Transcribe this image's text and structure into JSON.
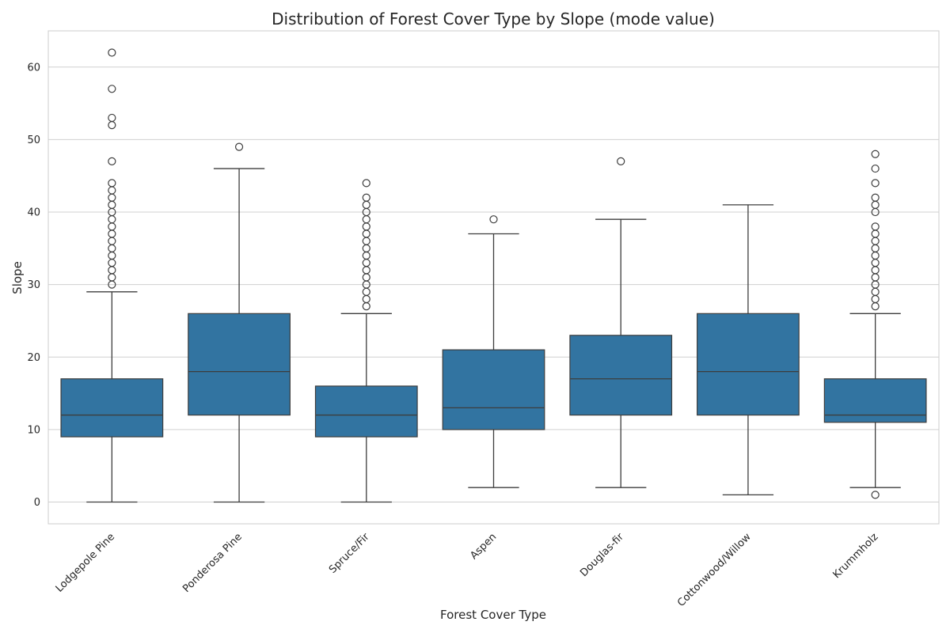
{
  "chart_data": {
    "type": "box",
    "title": "Distribution of Forest Cover Type by Slope (mode value)",
    "xlabel": "Forest Cover Type",
    "ylabel": "Slope",
    "ylim": [
      -3,
      65
    ],
    "yticks": [
      0,
      10,
      20,
      30,
      40,
      50,
      60
    ],
    "grid": true,
    "box_color": "#3274a1",
    "categories": [
      "Lodgepole Pine",
      "Ponderosa Pine",
      "Spruce/Fir",
      "Aspen",
      "Douglas-fir",
      "Cottonwood/Willow",
      "Krummholz"
    ],
    "boxes": [
      {
        "whisker_low": 0,
        "q1": 9,
        "median": 12,
        "q3": 17,
        "whisker_high": 29,
        "fliers": [
          30,
          31,
          32,
          33,
          34,
          35,
          36,
          37,
          38,
          39,
          40,
          41,
          42,
          43,
          44,
          47,
          52,
          53,
          57,
          62
        ]
      },
      {
        "whisker_low": 0,
        "q1": 12,
        "median": 18,
        "q3": 26,
        "whisker_high": 46,
        "fliers": [
          49
        ]
      },
      {
        "whisker_low": 0,
        "q1": 9,
        "median": 12,
        "q3": 16,
        "whisker_high": 26,
        "fliers": [
          27,
          28,
          29,
          30,
          31,
          32,
          33,
          34,
          35,
          36,
          37,
          38,
          39,
          40,
          41,
          42,
          44
        ]
      },
      {
        "whisker_low": 2,
        "q1": 10,
        "median": 13,
        "q3": 21,
        "whisker_high": 37,
        "fliers": [
          39
        ]
      },
      {
        "whisker_low": 2,
        "q1": 12,
        "median": 17,
        "q3": 23,
        "whisker_high": 39,
        "fliers": [
          47
        ]
      },
      {
        "whisker_low": 1,
        "q1": 12,
        "median": 18,
        "q3": 26,
        "whisker_high": 41,
        "fliers": []
      },
      {
        "whisker_low": 2,
        "q1": 11,
        "median": 12,
        "q3": 17,
        "whisker_high": 26,
        "fliers": [
          1,
          27,
          28,
          29,
          30,
          31,
          32,
          33,
          34,
          35,
          36,
          37,
          38,
          40,
          41,
          42,
          44,
          46,
          48
        ]
      }
    ]
  }
}
